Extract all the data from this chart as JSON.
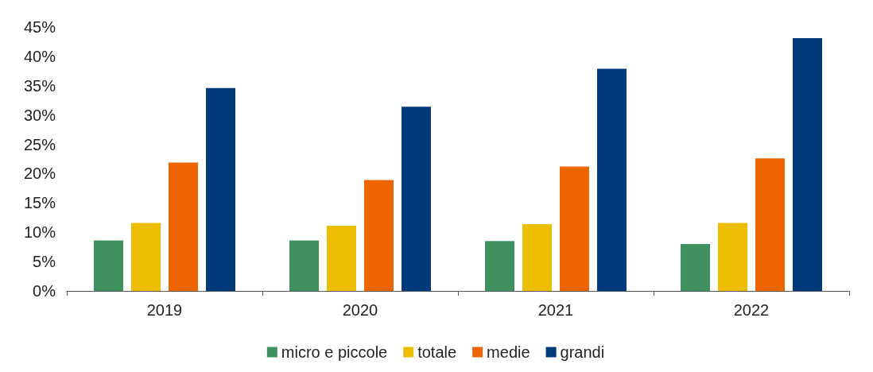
{
  "chart_data": {
    "type": "bar",
    "categories": [
      "2019",
      "2020",
      "2021",
      "2022"
    ],
    "series": [
      {
        "name": "micro e piccole",
        "color": "#3f9160",
        "values": [
          8.6,
          8.6,
          8.5,
          8.0
        ]
      },
      {
        "name": "totale",
        "color": "#ecbd00",
        "values": [
          11.6,
          11.1,
          11.4,
          11.6
        ]
      },
      {
        "name": "medie",
        "color": "#ec6500",
        "values": [
          21.9,
          18.9,
          21.2,
          22.6
        ]
      },
      {
        "name": "grandi",
        "color": "#003a7a",
        "values": [
          34.6,
          31.4,
          37.9,
          43.1
        ]
      }
    ],
    "ylim": [
      0,
      45
    ],
    "yticks": [
      {
        "value": 0,
        "label": "0%"
      },
      {
        "value": 5,
        "label": "5%"
      },
      {
        "value": 10,
        "label": "10%"
      },
      {
        "value": 15,
        "label": "15%"
      },
      {
        "value": 20,
        "label": "20%"
      },
      {
        "value": 25,
        "label": "25%"
      },
      {
        "value": 30,
        "label": "30%"
      },
      {
        "value": 35,
        "label": "35%"
      },
      {
        "value": 40,
        "label": "40%"
      },
      {
        "value": 45,
        "label": "45%"
      }
    ],
    "grid": false,
    "legend": "bottom"
  }
}
